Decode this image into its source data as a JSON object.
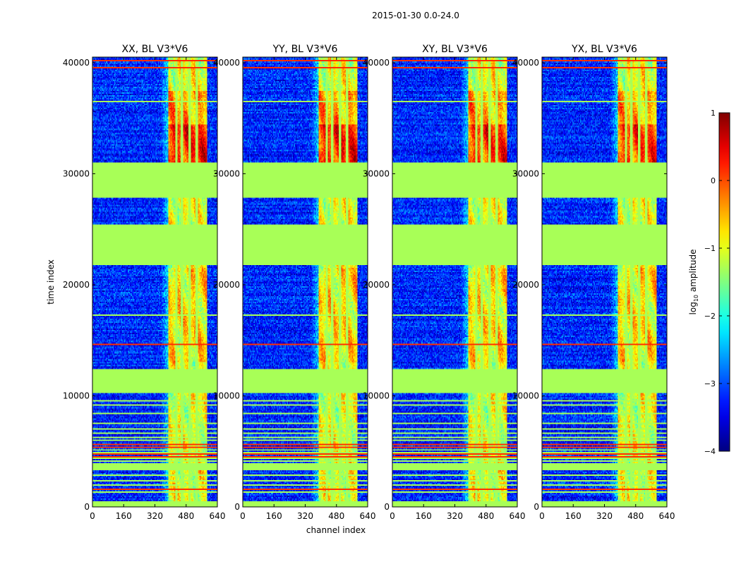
{
  "chart_data": {
    "type": "heatmap",
    "suptitle": "2015-01-30 0.0-24.0",
    "xlabel": "channel index",
    "ylabel": "time index",
    "xlim": [
      0,
      640
    ],
    "ylim": [
      0,
      40500
    ],
    "xticks": [
      0,
      160,
      320,
      480,
      640
    ],
    "yticks": [
      0,
      10000,
      20000,
      30000,
      40000
    ],
    "panels": [
      {
        "title": "XX, BL V3*V6",
        "ytick_labels": [
          "0",
          "10000",
          "20000",
          "30000",
          "40000"
        ]
      },
      {
        "title": "YY, BL V3*V6",
        "ytick_labels": [
          "0",
          "10000",
          "20000",
          "30000",
          "40000"
        ]
      },
      {
        "title": "XY, BL V3*V6",
        "ytick_labels": [
          "0",
          "10000",
          "20000",
          "30000",
          "40000"
        ]
      },
      {
        "title": "YX, BL V3*V6",
        "ytick_labels": [
          "0",
          "10000",
          "20000",
          "30000",
          "40000"
        ]
      }
    ],
    "colorbar": {
      "label": "log",
      "label_sub": "10",
      "label_rest": " amplitude",
      "range": [
        -4,
        1
      ],
      "ticks": [
        -4,
        -3,
        -2,
        -1,
        0,
        1
      ],
      "tick_labels": [
        "−4",
        "−3",
        "−2",
        "−1",
        "0",
        "1"
      ],
      "colormap": "jet"
    },
    "flagged_time_ranges": [
      [
        0,
        400
      ],
      [
        3200,
        3900
      ],
      [
        10200,
        12400
      ],
      [
        21800,
        25500
      ],
      [
        27900,
        31000
      ]
    ],
    "rfi_channel_range": [
      390,
      590
    ],
    "flagged_channels": [
      430,
      460,
      500,
      535
    ],
    "background_level": -3.2,
    "flag_fill_level": -1.3
  }
}
